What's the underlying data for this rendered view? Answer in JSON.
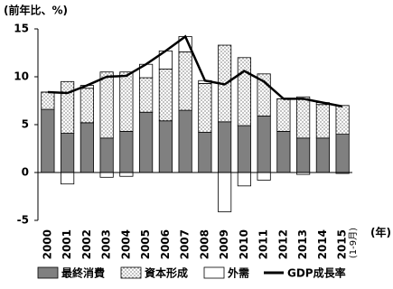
{
  "chart_data": {
    "type": "bar",
    "stacked": true,
    "y_label": "(前年比、%)",
    "categories": [
      "2000",
      "2001",
      "2002",
      "2003",
      "2004",
      "2005",
      "2006",
      "2007",
      "2008",
      "2009",
      "2010",
      "2011",
      "2012",
      "2013",
      "2014",
      "2015"
    ],
    "x_note": "(1-9月)",
    "x_unit": "(年)",
    "series": [
      {
        "name": "最終消費",
        "color": "#808080",
        "values": [
          6.6,
          4.1,
          5.2,
          3.6,
          4.3,
          6.3,
          5.4,
          6.5,
          4.2,
          5.3,
          4.9,
          5.9,
          4.3,
          3.6,
          3.6,
          4.0
        ]
      },
      {
        "name": "資本形成",
        "color": "dots",
        "values": [
          1.8,
          5.4,
          3.6,
          6.9,
          6.2,
          3.6,
          5.4,
          6.1,
          5.1,
          8.0,
          7.1,
          4.4,
          3.4,
          4.3,
          3.5,
          3.0
        ]
      },
      {
        "name": "外需",
        "color": "#ffffff",
        "values": [
          0.0,
          -1.2,
          0.3,
          -0.5,
          -0.4,
          1.4,
          1.9,
          1.6,
          0.3,
          -4.1,
          -1.4,
          -0.8,
          0.0,
          -0.2,
          0.2,
          -0.1
        ]
      },
      {
        "name": "GDP成長率",
        "type": "line",
        "color": "#000000",
        "values": [
          8.4,
          8.3,
          9.1,
          10.0,
          10.1,
          11.3,
          12.7,
          14.2,
          9.6,
          9.2,
          10.6,
          9.5,
          7.7,
          7.7,
          7.3,
          6.9
        ]
      }
    ],
    "ylim": [
      -5,
      15
    ],
    "yticks": [
      -5,
      0,
      5,
      10,
      15
    ]
  }
}
